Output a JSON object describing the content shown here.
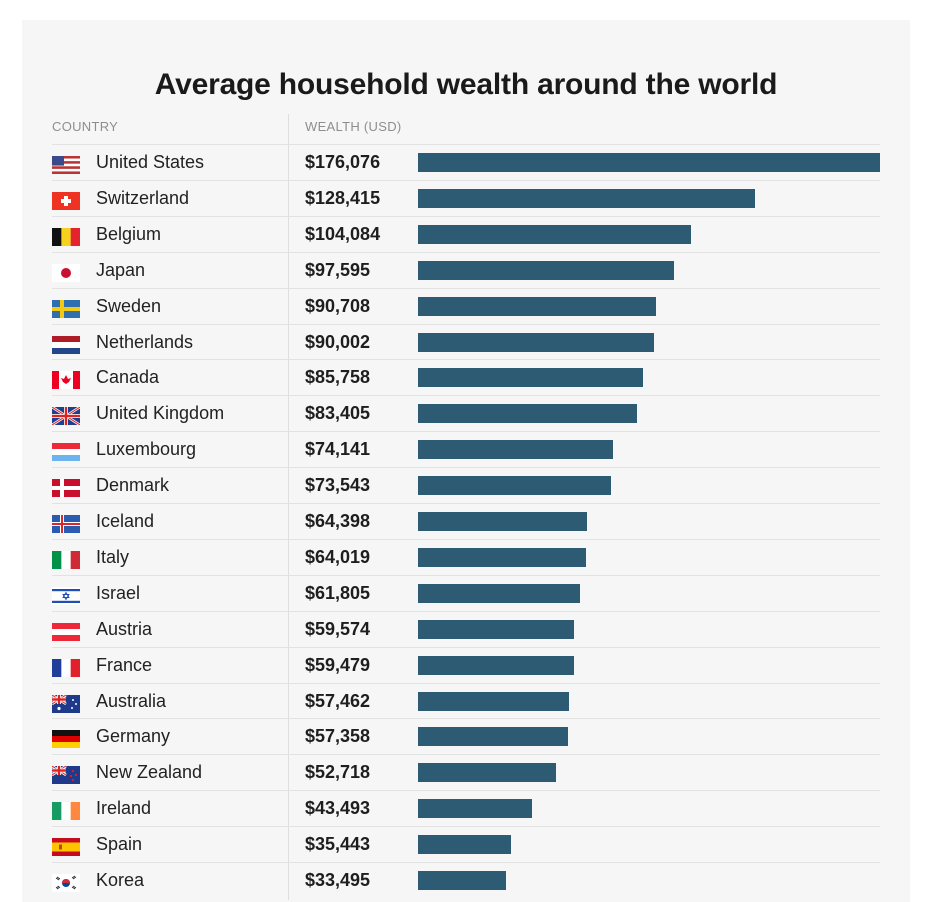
{
  "chart_data": {
    "type": "bar",
    "orientation": "horizontal",
    "title": "Average household wealth around the world",
    "column_headers": {
      "country": "COUNTRY",
      "wealth": "WEALTH (USD)"
    },
    "bar_color": "#2d5b73",
    "xlim": [
      0,
      176076
    ],
    "rows": [
      {
        "country": "United States",
        "label": "$176,076",
        "value": 176076,
        "flag": "us"
      },
      {
        "country": "Switzerland",
        "label": "$128,415",
        "value": 128415,
        "flag": "ch"
      },
      {
        "country": "Belgium",
        "label": "$104,084",
        "value": 104084,
        "flag": "be"
      },
      {
        "country": "Japan",
        "label": "$97,595",
        "value": 97595,
        "flag": "jp"
      },
      {
        "country": "Sweden",
        "label": "$90,708",
        "value": 90708,
        "flag": "se"
      },
      {
        "country": "Netherlands",
        "label": "$90,002",
        "value": 90002,
        "flag": "nl"
      },
      {
        "country": "Canada",
        "label": "$85,758",
        "value": 85758,
        "flag": "ca"
      },
      {
        "country": "United Kingdom",
        "label": "$83,405",
        "value": 83405,
        "flag": "gb"
      },
      {
        "country": "Luxembourg",
        "label": "$74,141",
        "value": 74141,
        "flag": "lu"
      },
      {
        "country": "Denmark",
        "label": "$73,543",
        "value": 73543,
        "flag": "dk"
      },
      {
        "country": "Iceland",
        "label": "$64,398",
        "value": 64398,
        "flag": "is"
      },
      {
        "country": "Italy",
        "label": "$64,019",
        "value": 64019,
        "flag": "it"
      },
      {
        "country": "Israel",
        "label": "$61,805",
        "value": 61805,
        "flag": "il"
      },
      {
        "country": "Austria",
        "label": "$59,574",
        "value": 59574,
        "flag": "at"
      },
      {
        "country": "France",
        "label": "$59,479",
        "value": 59479,
        "flag": "fr"
      },
      {
        "country": "Australia",
        "label": "$57,462",
        "value": 57462,
        "flag": "au"
      },
      {
        "country": "Germany",
        "label": "$57,358",
        "value": 57358,
        "flag": "de"
      },
      {
        "country": "New Zealand",
        "label": "$52,718",
        "value": 52718,
        "flag": "nz"
      },
      {
        "country": "Ireland",
        "label": "$43,493",
        "value": 43493,
        "flag": "ie"
      },
      {
        "country": "Spain",
        "label": "$35,443",
        "value": 35443,
        "flag": "es"
      },
      {
        "country": "Korea",
        "label": "$33,495",
        "value": 33495,
        "flag": "kr"
      }
    ]
  }
}
